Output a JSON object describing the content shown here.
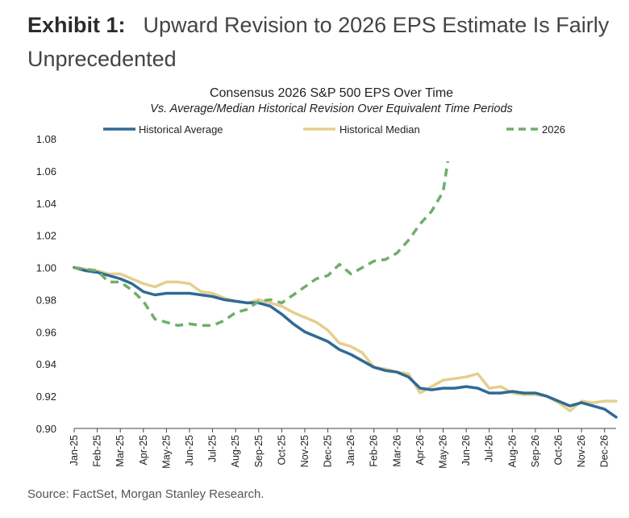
{
  "exhibit": {
    "label": "Exhibit 1:",
    "title": "Upward Revision to 2026 EPS Estimate Is Fairly Unprecedented"
  },
  "source": "Source: FactSet, Morgan Stanley Research.",
  "colors": {
    "historical_average": "#2f6a96",
    "historical_median": "#e5cf8e",
    "y2026": "#6fae6b",
    "axis": "#444444",
    "text": "#222222"
  },
  "chart_data": {
    "type": "line",
    "title": "Consensus 2026 S&P 500 EPS Over Time",
    "subtitle": "Vs. Average/Median Historical Revision Over Equivalent Time Periods",
    "xlabel": "",
    "ylabel": "",
    "ylim": [
      0.9,
      1.08
    ],
    "yticks": [
      0.9,
      0.92,
      0.94,
      0.96,
      0.98,
      1.0,
      1.02,
      1.04,
      1.06,
      1.08
    ],
    "ytick_labels": [
      "0.90",
      "0.92",
      "0.94",
      "0.96",
      "0.98",
      "1.00",
      "1.02",
      "1.04",
      "1.06",
      "1.08"
    ],
    "xlim": [
      0,
      23.5
    ],
    "categories": [
      "Jan-25",
      "Feb-25",
      "Mar-25",
      "Apr-25",
      "May-25",
      "Jun-25",
      "Jul-25",
      "Aug-25",
      "Sep-25",
      "Oct-25",
      "Nov-25",
      "Dec-25",
      "Jan-26",
      "Feb-26",
      "Mar-26",
      "Apr-26",
      "May-26",
      "Jun-26",
      "Jul-26",
      "Aug-26",
      "Sep-26",
      "Oct-26",
      "Nov-26",
      "Dec-26"
    ],
    "legend_position": "top",
    "grid": false,
    "series": [
      {
        "name": "Historical Average",
        "style": "solid",
        "x": [
          0,
          0.5,
          1,
          1.5,
          2,
          2.5,
          3,
          3.5,
          4,
          4.5,
          5,
          5.5,
          6,
          6.5,
          7,
          7.5,
          8,
          8.5,
          9,
          9.5,
          10,
          10.5,
          11,
          11.5,
          12,
          12.5,
          13,
          13.5,
          14,
          14.5,
          15,
          15.5,
          16,
          16.5,
          17,
          17.5,
          18,
          18.5,
          19,
          19.5,
          20,
          20.5,
          21,
          21.5,
          22,
          22.5,
          23,
          23.5
        ],
        "values": [
          1.0,
          0.998,
          0.997,
          0.995,
          0.993,
          0.99,
          0.985,
          0.983,
          0.984,
          0.984,
          0.984,
          0.983,
          0.982,
          0.98,
          0.979,
          0.978,
          0.978,
          0.976,
          0.971,
          0.965,
          0.96,
          0.957,
          0.954,
          0.949,
          0.946,
          0.942,
          0.938,
          0.936,
          0.935,
          0.932,
          0.925,
          0.924,
          0.925,
          0.925,
          0.926,
          0.925,
          0.922,
          0.922,
          0.923,
          0.922,
          0.922,
          0.92,
          0.917,
          0.914,
          0.916,
          0.914,
          0.912,
          0.907
        ]
      },
      {
        "name": "Historical Median",
        "style": "solid",
        "x": [
          0,
          0.5,
          1,
          1.5,
          2,
          2.5,
          3,
          3.5,
          4,
          4.5,
          5,
          5.5,
          6,
          6.5,
          7,
          7.5,
          8,
          8.5,
          9,
          9.5,
          10,
          10.5,
          11,
          11.5,
          12,
          12.5,
          13,
          13.5,
          14,
          14.5,
          15,
          15.5,
          16,
          16.5,
          17,
          17.5,
          18,
          18.5,
          19,
          19.5,
          20,
          20.5,
          21,
          21.5,
          22,
          22.5,
          23,
          23.5
        ],
        "values": [
          1.0,
          0.999,
          0.998,
          0.996,
          0.996,
          0.993,
          0.99,
          0.988,
          0.991,
          0.991,
          0.99,
          0.985,
          0.984,
          0.981,
          0.979,
          0.978,
          0.98,
          0.978,
          0.976,
          0.972,
          0.969,
          0.966,
          0.961,
          0.953,
          0.951,
          0.947,
          0.938,
          0.937,
          0.935,
          0.934,
          0.922,
          0.926,
          0.93,
          0.931,
          0.932,
          0.934,
          0.925,
          0.926,
          0.922,
          0.921,
          0.921,
          0.92,
          0.916,
          0.911,
          0.917,
          0.916,
          0.917,
          0.917
        ]
      },
      {
        "name": "2026",
        "style": "dashed",
        "x": [
          0,
          0.5,
          1,
          1.5,
          2,
          2.5,
          3,
          3.5,
          4,
          4.5,
          5,
          5.5,
          6,
          6.5,
          7,
          7.5,
          8,
          8.5,
          9,
          9.5,
          10,
          10.5,
          11,
          11.5,
          12,
          12.5,
          13,
          13.5,
          14,
          14.5,
          15,
          15.5,
          16,
          16.2
        ],
        "values": [
          1.0,
          0.999,
          0.998,
          0.991,
          0.991,
          0.986,
          0.979,
          0.968,
          0.966,
          0.964,
          0.965,
          0.964,
          0.964,
          0.967,
          0.972,
          0.974,
          0.979,
          0.98,
          0.978,
          0.983,
          0.988,
          0.993,
          0.995,
          1.002,
          0.996,
          1.0,
          1.004,
          1.005,
          1.009,
          1.017,
          1.027,
          1.035,
          1.047,
          1.066
        ]
      }
    ]
  }
}
